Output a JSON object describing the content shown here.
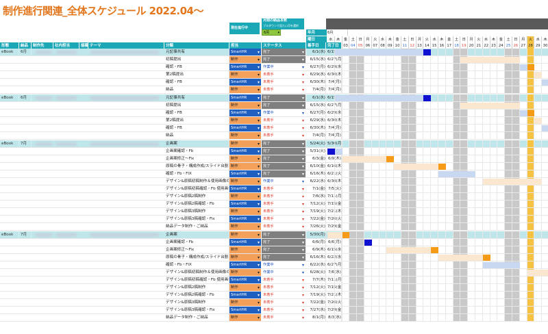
{
  "title": "制作進行関連_全体スケジュール 2022.04〜",
  "controls": {
    "current_label": "現在進行中",
    "monthly_label": "月間の納品本数",
    "monthly_sub": "プルダウンで見たい月を選択",
    "selected_month": "6月",
    "start_date_label": "着手日",
    "end_date_label": "完了日",
    "month_label": "年月",
    "weekday_label": "曜日",
    "month_value": "6月"
  },
  "columns": [
    "形態",
    "納品",
    "制作先",
    "社内担当",
    "接案",
    "テーマ",
    "分類",
    "担当",
    "ステータス",
    "着手日",
    "完了日"
  ],
  "colors": {
    "header": "#1aa7b6",
    "section": "#bfe6ea",
    "smarthr": "#1f5fbf",
    "seisaku": "#f2a05a",
    "done": "#7f7f7f",
    "wip": "#b7d7f5",
    "todo": "#fbe3cc",
    "gantt_gray": "#c9c9c9",
    "gantt_orange": "#f59b18",
    "gantt_blue": "#1010d0",
    "gantt_today": "#f5c242",
    "gantt_lightblue": "#c8d8f0",
    "gantt_peach": "#fbe6cf"
  },
  "days": [
    {
      "d": "01",
      "w": "水"
    },
    {
      "d": "02",
      "w": "木"
    },
    {
      "d": "03",
      "w": "金"
    },
    {
      "d": "04",
      "w": "土"
    },
    {
      "d": "05",
      "w": "日"
    },
    {
      "d": "06",
      "w": "月"
    },
    {
      "d": "07",
      "w": "火"
    },
    {
      "d": "08",
      "w": "水"
    },
    {
      "d": "09",
      "w": "木"
    },
    {
      "d": "10",
      "w": "金"
    },
    {
      "d": "11",
      "w": "土"
    },
    {
      "d": "12",
      "w": "日"
    },
    {
      "d": "13",
      "w": "月"
    },
    {
      "d": "14",
      "w": "火"
    },
    {
      "d": "15",
      "w": "水"
    },
    {
      "d": "16",
      "w": "木"
    },
    {
      "d": "17",
      "w": "金"
    },
    {
      "d": "18",
      "w": "土"
    },
    {
      "d": "19",
      "w": "日"
    },
    {
      "d": "20",
      "w": "月"
    },
    {
      "d": "21",
      "w": "火"
    },
    {
      "d": "22",
      "w": "水"
    },
    {
      "d": "23",
      "w": "木"
    },
    {
      "d": "24",
      "w": "金"
    },
    {
      "d": "25",
      "w": "土"
    },
    {
      "d": "26",
      "w": "日"
    },
    {
      "d": "27",
      "w": "月"
    },
    {
      "d": "28",
      "w": "火"
    },
    {
      "d": "29",
      "w": "水"
    },
    {
      "d": "30",
      "w": "木"
    }
  ],
  "sections": [
    {
      "type": "eBook",
      "month": "6月",
      "rows": [
        {
          "task": "元記事共有",
          "owner": "SmartHR",
          "status": "完了",
          "start": "6/1(水)",
          "end": "6/15(水)",
          "bars": [
            [
              "lb",
              1,
              13
            ],
            [
              "blue",
              13,
              14
            ]
          ]
        },
        {
          "task": "初稿提出",
          "owner": "制作",
          "status": "完了",
          "start": "6/15(水)",
          "end": "6/27(月)",
          "bars": [
            [
              "pe",
              18,
              26
            ]
          ]
        },
        {
          "task": "確認・FB",
          "owner": "SmartHR",
          "status": "作業中",
          "start": "6/27(月)",
          "end": "6/29(水)",
          "bars": [
            [
              "lb",
              26,
              27
            ],
            [
              "or",
              27,
              28
            ]
          ]
        },
        {
          "task": "第2稿提出",
          "owner": "制作",
          "status": "未着手",
          "start": "6/29(水)",
          "end": "6/30(木)",
          "bars": [
            [
              "pe",
              28,
              29
            ]
          ]
        },
        {
          "task": "確認・FB",
          "owner": "SmartHR",
          "status": "未着手",
          "start": "6/30(木)",
          "end": "7/4(月)",
          "bars": [
            [
              "lb",
              29,
              30
            ]
          ]
        },
        {
          "task": "納品",
          "owner": "制作",
          "status": "未着手",
          "start": "7/4(月)",
          "end": "7/4(月)",
          "bars": []
        }
      ]
    },
    {
      "type": "eBook",
      "month": "6月",
      "rows": [
        {
          "task": "元記事共有",
          "owner": "SmartHR",
          "status": "完了",
          "start": "6/1(水)",
          "end": "6/15(水)",
          "bars": [
            [
              "lb",
              1,
              13
            ],
            [
              "blue",
              13,
              14
            ]
          ]
        },
        {
          "task": "初稿提出",
          "owner": "制作",
          "status": "完了",
          "start": "6/15(水)",
          "end": "6/27(月)",
          "bars": [
            [
              "pe",
              18,
              26
            ]
          ]
        },
        {
          "task": "確認・FB",
          "owner": "SmartHR",
          "status": "作業中",
          "start": "6/27(月)",
          "end": "6/29(水)",
          "bars": [
            [
              "lb",
              26,
              27
            ],
            [
              "or",
              27,
              28
            ]
          ]
        },
        {
          "task": "第2稿提出",
          "owner": "制作",
          "status": "未着手",
          "start": "6/29(水)",
          "end": "6/30(木)",
          "bars": [
            [
              "pe",
              28,
              29
            ]
          ]
        },
        {
          "task": "確認・FB",
          "owner": "SmartHR",
          "status": "未着手",
          "start": "6/30(木)",
          "end": "7/4(月)",
          "bars": [
            [
              "lb",
              29,
              30
            ]
          ]
        },
        {
          "task": "納品",
          "owner": "制作",
          "status": "未着手",
          "start": "7/4(月)",
          "end": "7/4(月)",
          "bars": []
        }
      ]
    },
    {
      "type": "eBook",
      "month": "7月",
      "rows": [
        {
          "task": "企画案",
          "owner": "制作",
          "status": "完了",
          "start": "5/24(火)",
          "end": "5/30(月)",
          "bars": []
        },
        {
          "task": "企画案確認・Fb",
          "owner": "SmartHR",
          "status": "完了",
          "start": "5/31(火)",
          "end": "6/2(木)",
          "bars": [
            [
              "blue",
              0,
              1
            ],
            [
              "lb",
              1,
              2
            ]
          ]
        },
        {
          "task": "企画案修正〜Fix",
          "owner": "制作",
          "status": "完了",
          "start": "6/3(金)",
          "end": "6/9(木)",
          "bars": [
            [
              "pe",
              2,
              8
            ],
            [
              "or",
              8,
              9
            ]
          ]
        },
        {
          "task": "原稿の骨子・構成作成/スライド台割・デザイン構成提出",
          "owner": "制作",
          "status": "完了",
          "start": "6/10(金)",
          "end": "6/16(木)",
          "bars": [
            [
              "pe",
              9,
              15
            ],
            [
              "or",
              15,
              16
            ]
          ]
        },
        {
          "task": "確認・Fb・FIX",
          "owner": "SmartHR",
          "status": "完了",
          "start": "6/16(木)",
          "end": "6/21(火)",
          "bars": [
            [
              "lb",
              15,
              20
            ]
          ]
        },
        {
          "task": "デザイン&原稿初稿制作＆使用画像のご提案",
          "owner": "制作",
          "status": "作業中",
          "start": "6/22(水)",
          "end": "6/30(木)",
          "bars": [
            [
              "pe",
              21,
              29
            ]
          ]
        },
        {
          "task": "デザイン&原稿初稿確認・Fb 使用画像のご確認・代替案のご検討",
          "owner": "SmartHR",
          "status": "未着手",
          "start": "7/1(金)",
          "end": "7/5(火)",
          "bars": []
        },
        {
          "task": "デザイン&原稿2稿制作",
          "owner": "制作",
          "status": "未着手",
          "start": "7/6(水)",
          "end": "7/11(月)",
          "bars": []
        },
        {
          "task": "デザイン&原稿2稿確認・Fb",
          "owner": "SmartHR",
          "status": "未着手",
          "start": "7/12(火)",
          "end": "7/15(金)",
          "bars": []
        },
        {
          "task": "デザイン&原稿3稿制作",
          "owner": "制作",
          "status": "未着手",
          "start": "7/19(火)",
          "end": "7/21(木)",
          "bars": []
        },
        {
          "task": "デザイン&原稿3稿確認・Fix",
          "owner": "SmartHR",
          "status": "未着手",
          "start": "7/22(金)",
          "end": "7/26(火)",
          "bars": []
        },
        {
          "task": "納品データ制作・ご納品",
          "owner": "制作",
          "status": "未着手",
          "start": "7/26(火)",
          "end": "7/29(金)",
          "bars": []
        }
      ]
    },
    {
      "type": "eBook",
      "month": "7月",
      "rows": [
        {
          "task": "企画案",
          "owner": "制作",
          "status": "完了",
          "start": "5/30(月)",
          "end": "6/3(金)",
          "bars": [
            [
              "pe",
              0,
              2
            ],
            [
              "or",
              2,
              3
            ]
          ]
        },
        {
          "task": "企画案確認・Fb",
          "owner": "SmartHR",
          "status": "完了",
          "start": "6/6(月)",
          "end": "6/6(月)",
          "bars": [
            [
              "blue",
              5,
              6
            ]
          ]
        },
        {
          "task": "企画案修正〜Fix",
          "owner": "制作",
          "status": "完了",
          "start": "6/9(木)",
          "end": "6/15(水)",
          "bars": [
            [
              "pe",
              8,
              14
            ],
            [
              "or",
              14,
              15
            ]
          ]
        },
        {
          "task": "原稿の骨子・構成作成/スライド台割・デザイン構成提出",
          "owner": "制作",
          "status": "完了",
          "start": "6/16(木)",
          "end": "6/22(水)",
          "bars": [
            [
              "pe",
              15,
              21
            ],
            [
              "or",
              21,
              22
            ]
          ]
        },
        {
          "task": "確認・Fb・FIX",
          "owner": "SmartHR",
          "status": "作業中",
          "start": "6/22(水)",
          "end": "6/27(月)",
          "bars": [
            [
              "lb",
              21,
              26
            ]
          ]
        },
        {
          "task": "デザイン&原稿初稿制作＆使用画像のご提案",
          "owner": "制作",
          "status": "作業中",
          "start": "6/28(火)",
          "end": "7/6(水)",
          "bars": [
            [
              "pe",
              27,
              30
            ]
          ]
        },
        {
          "task": "デザイン&原稿初稿確認・Fb 使用画像のご確認・代替案のご検討",
          "owner": "SmartHR",
          "status": "未着手",
          "start": "7/7(木)",
          "end": "7/11(月)",
          "bars": []
        },
        {
          "task": "デザイン&原稿2稿制作",
          "owner": "制作",
          "status": "未着手",
          "start": "7/12(火)",
          "end": "7/15(金)",
          "bars": []
        },
        {
          "task": "デザイン&原稿2稿確認・Fb",
          "owner": "SmartHR",
          "status": "未着手",
          "start": "7/19(火)",
          "end": "7/21(木)",
          "bars": []
        },
        {
          "task": "デザイン&原稿3稿制作",
          "owner": "制作",
          "status": "未着手",
          "start": "7/22(金)",
          "end": "7/26(火)",
          "bars": []
        },
        {
          "task": "デザイン&原稿3稿確認・Fix",
          "owner": "SmartHR",
          "status": "未着手",
          "start": "7/27(水)",
          "end": "7/29(金)",
          "bars": []
        },
        {
          "task": "納品データ制作・ご納品",
          "owner": "制作",
          "status": "未着手",
          "start": "8/1(月)",
          "end": "8/3(水)",
          "bars": []
        }
      ]
    }
  ]
}
